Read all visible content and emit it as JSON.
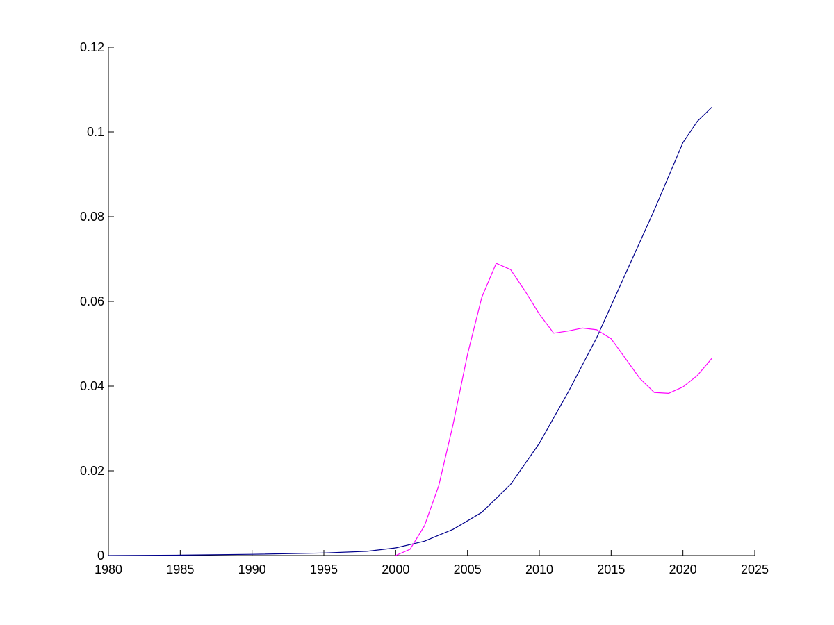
{
  "chart_data": {
    "type": "line",
    "title": "",
    "xlabel": "",
    "ylabel": "",
    "xlim": [
      1980,
      2025
    ],
    "ylim": [
      0,
      0.12
    ],
    "grid": false,
    "legend": "none",
    "x_ticks": [
      1980,
      1985,
      1990,
      1995,
      2000,
      2005,
      2010,
      2015,
      2020,
      2025
    ],
    "x_tick_labels": [
      "1980",
      "1985",
      "1990",
      "1995",
      "2000",
      "2005",
      "2010",
      "2015",
      "2020",
      "2025"
    ],
    "y_ticks": [
      0,
      0.02,
      0.04,
      0.06,
      0.08,
      0.1,
      0.12
    ],
    "y_tick_labels": [
      "0",
      "0.02",
      "0.04",
      "0.06",
      "0.08",
      "0.1",
      "0.12"
    ],
    "axis_color": "#000000",
    "series": [
      {
        "color": "#00008b",
        "x": [
          1980,
          1985,
          1990,
          1995,
          1998,
          2000,
          2002,
          2004,
          2006,
          2008,
          2010,
          2012,
          2014,
          2016,
          2018,
          2020,
          2021,
          2022
        ],
        "y": [
          0,
          0.0001,
          0.0003,
          0.0006,
          0.001,
          0.0018,
          0.0034,
          0.0062,
          0.0102,
          0.0168,
          0.0265,
          0.0385,
          0.0515,
          0.0665,
          0.0815,
          0.0975,
          0.1025,
          0.1058
        ]
      },
      {
        "color": "#ff00ff",
        "x": [
          2000,
          2001,
          2002,
          2003,
          2004,
          2005,
          2006,
          2007,
          2008,
          2009,
          2010,
          2011,
          2012,
          2013,
          2014,
          2015,
          2016,
          2017,
          2018,
          2019,
          2020,
          2021,
          2022
        ],
        "y": [
          0,
          0.0015,
          0.007,
          0.0165,
          0.031,
          0.0475,
          0.061,
          0.069,
          0.0675,
          0.0625,
          0.057,
          0.0525,
          0.053,
          0.0537,
          0.0533,
          0.0512,
          0.0465,
          0.0418,
          0.0385,
          0.0383,
          0.0398,
          0.0425,
          0.0465
        ]
      }
    ]
  }
}
